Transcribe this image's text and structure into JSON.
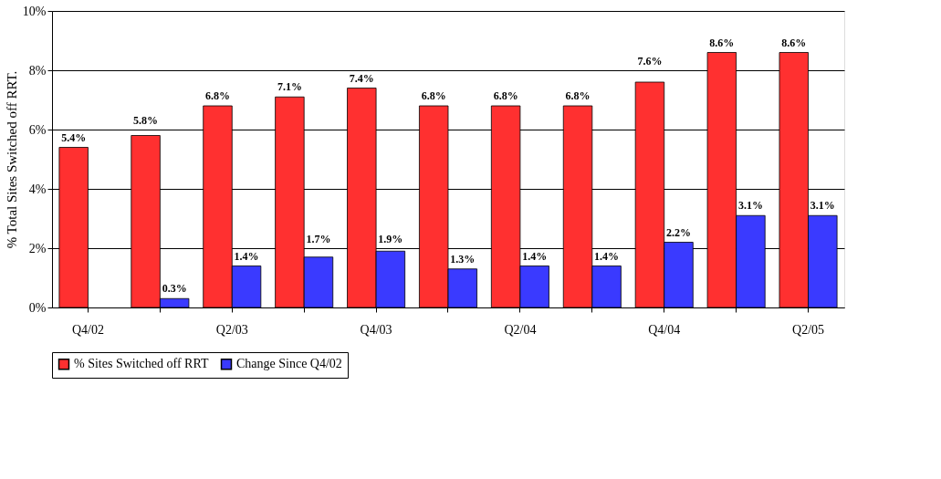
{
  "chart_data": {
    "type": "bar",
    "ylabel": "% Total Sites Switched off RRT.",
    "categories": [
      "Q4/02",
      null,
      "Q2/03",
      null,
      "Q4/03",
      null,
      "Q2/04",
      null,
      "Q4/04",
      null,
      "Q2/05"
    ],
    "series": [
      {
        "name": "% Sites Switched off RRT",
        "color": "#ff3030",
        "values": [
          5.4,
          5.8,
          6.8,
          7.1,
          7.4,
          6.8,
          6.8,
          6.8,
          7.6,
          8.6,
          8.6
        ],
        "value_labels": [
          "5.4%",
          "5.8%",
          "6.8%",
          "7.1%",
          "7.4%",
          "6.8%",
          "6.8%",
          "6.8%",
          "7.6%",
          "8.6%",
          "8.6%"
        ]
      },
      {
        "name": "Change Since Q4/02",
        "color": "#3a3aff",
        "values": [
          null,
          0.3,
          1.4,
          1.7,
          1.9,
          1.3,
          1.4,
          1.4,
          2.2,
          3.1,
          3.1
        ],
        "value_labels": [
          null,
          "0.3%",
          "1.4%",
          "1.7%",
          "1.9%",
          "1.3%",
          "1.4%",
          "1.4%",
          "2.2%",
          "3.1%",
          "3.1%"
        ]
      }
    ],
    "ylim": [
      0,
      10
    ],
    "yticks": [
      {
        "value": 0,
        "label": "0%"
      },
      {
        "value": 2,
        "label": "2%"
      },
      {
        "value": 4,
        "label": "4%"
      },
      {
        "value": 6,
        "label": "6%"
      },
      {
        "value": 8,
        "label": "8%"
      },
      {
        "value": 10,
        "label": "10%"
      }
    ],
    "grid": "y",
    "legend": "bottom"
  }
}
